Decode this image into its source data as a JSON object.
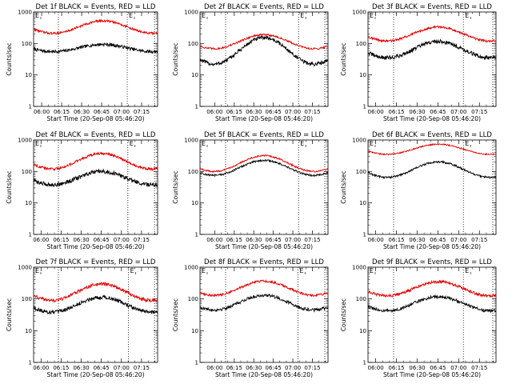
{
  "chart_data": [
    {
      "type": "line",
      "title": "Det 1f BLACK = Events, RED = LLD",
      "xlabel": "Start Time (20-Sep-08 05:46:20)",
      "ylabel": "Counts/sec",
      "yscale": "log",
      "ylim": [
        1,
        1000
      ],
      "yticks": [
        "1",
        "10",
        "100",
        "1000"
      ],
      "xticks": [
        "06:00",
        "06:15",
        "06:30",
        "06:45",
        "07:00",
        "07:15"
      ],
      "xtick_offset": 0.065,
      "markers": [
        "E",
        "E"
      ],
      "marker_pos": [
        0.0,
        0.755
      ],
      "vlines": [
        0.2,
        0.755,
        0.975
      ],
      "series": [
        {
          "color": "#000000",
          "base": 55,
          "amp": 1.7,
          "period": 0.8,
          "phase": 0.56,
          "noise": 0.1
        },
        {
          "color": "#e00000",
          "base": 210,
          "amp": 2.5,
          "period": 0.8,
          "phase": 0.56,
          "noise": 0.07
        }
      ]
    },
    {
      "type": "line",
      "title": "Det 2f BLACK = Events, RED = LLD",
      "xlabel": "Start Time (20-Sep-08 05:46:20)",
      "ylabel": "Counts/sec",
      "yscale": "log",
      "ylim": [
        1,
        1000
      ],
      "yticks": [
        "1",
        "10",
        "100",
        "1000"
      ],
      "xticks": [
        "06:00",
        "06:15",
        "06:30",
        "06:45",
        "07:00",
        "07:15"
      ],
      "xtick_offset": 0.115,
      "markers": [
        "E",
        "E"
      ],
      "marker_pos": [
        0.0,
        0.77
      ],
      "vlines": [
        0.2,
        0.77,
        0.975
      ],
      "series": [
        {
          "color": "#000000",
          "base": 22,
          "amp": 7,
          "period": 0.78,
          "phase": 0.5,
          "noise": 0.12
        },
        {
          "color": "#e00000",
          "base": 68,
          "amp": 2.8,
          "period": 0.78,
          "phase": 0.5,
          "noise": 0.06
        }
      ]
    },
    {
      "type": "line",
      "title": "Det 3f BLACK = Events, RED = LLD",
      "xlabel": "Start Time (20-Sep-08 05:46:20)",
      "ylabel": "Counts/sec",
      "yscale": "log",
      "ylim": [
        1,
        1000
      ],
      "yticks": [
        "1",
        "10",
        "100",
        "1000"
      ],
      "xticks": [
        "06:00",
        "06:15",
        "06:30",
        "06:45",
        "07:00",
        "07:15"
      ],
      "xtick_offset": 0.06,
      "markers": [
        "E",
        "E"
      ],
      "marker_pos": [
        0.0,
        0.745
      ],
      "vlines": [
        0.2,
        0.745,
        0.975
      ],
      "series": [
        {
          "color": "#000000",
          "base": 35,
          "amp": 3.3,
          "period": 0.8,
          "phase": 0.55,
          "noise": 0.13
        },
        {
          "color": "#e00000",
          "base": 120,
          "amp": 2.8,
          "period": 0.8,
          "phase": 0.55,
          "noise": 0.07
        }
      ]
    },
    {
      "type": "line",
      "title": "Det 4f BLACK = Events, RED = LLD",
      "xlabel": "Start Time (20-Sep-08 05:46:20)",
      "ylabel": "Counts/sec",
      "yscale": "log",
      "ylim": [
        1,
        1000
      ],
      "yticks": [
        "1",
        "10",
        "100",
        "1000"
      ],
      "xticks": [
        "06:00",
        "06:15",
        "06:30",
        "06:45",
        "07:00",
        "07:15"
      ],
      "xtick_offset": 0.06,
      "markers": [
        "E",
        "E"
      ],
      "marker_pos": [
        0.0,
        0.76
      ],
      "vlines": [
        0.2,
        0.76,
        0.975
      ],
      "series": [
        {
          "color": "#000000",
          "base": 38,
          "amp": 2.6,
          "period": 0.8,
          "phase": 0.55,
          "noise": 0.13
        },
        {
          "color": "#e00000",
          "base": 120,
          "amp": 3.1,
          "period": 0.8,
          "phase": 0.55,
          "noise": 0.08
        }
      ]
    },
    {
      "type": "line",
      "title": "Det 5f BLACK = Events, RED = LLD",
      "xlabel": "Start Time (20-Sep-08 05:46:20)",
      "ylabel": "Counts/sec",
      "yscale": "log",
      "ylim": [
        1,
        1000
      ],
      "yticks": [
        "1",
        "10",
        "100",
        "1000"
      ],
      "xticks": [
        "06:00",
        "06:15",
        "06:30",
        "06:45",
        "07:00",
        "07:15"
      ],
      "xtick_offset": 0.115,
      "markers": [
        "E",
        "E"
      ],
      "marker_pos": [
        0.0,
        0.77
      ],
      "vlines": [
        0.2,
        0.77,
        0.975
      ],
      "series": [
        {
          "color": "#000000",
          "base": 75,
          "amp": 3.0,
          "period": 0.78,
          "phase": 0.5,
          "noise": 0.06
        },
        {
          "color": "#e00000",
          "base": 100,
          "amp": 3.2,
          "period": 0.78,
          "phase": 0.5,
          "noise": 0.05
        }
      ]
    },
    {
      "type": "line",
      "title": "Det 6f BLACK = Events, RED = LLD",
      "xlabel": "Start Time (20-Sep-08 05:46:20)",
      "ylabel": "Counts/sec",
      "yscale": "log",
      "ylim": [
        1,
        1000
      ],
      "yticks": [
        "1",
        "10",
        "100",
        "1000"
      ],
      "xticks": [
        "06:00",
        "06:15",
        "06:30",
        "06:45",
        "07:00",
        "07:15"
      ],
      "xtick_offset": 0.06,
      "markers": [
        "E",
        "E"
      ],
      "marker_pos": [
        0.0,
        0.745
      ],
      "vlines": [
        0.2,
        0.745,
        0.975
      ],
      "series": [
        {
          "color": "#000000",
          "base": 65,
          "amp": 3.1,
          "period": 0.8,
          "phase": 0.55,
          "noise": 0.06
        },
        {
          "color": "#e00000",
          "base": 350,
          "amp": 2.1,
          "period": 0.8,
          "phase": 0.55,
          "noise": 0.04
        }
      ]
    },
    {
      "type": "line",
      "title": "Det 7f BLACK = Events, RED = LLD",
      "xlabel": "Start Time (20-Sep-08 05:46:20)",
      "ylabel": "Counts/sec",
      "yscale": "log",
      "ylim": [
        1,
        1000
      ],
      "yticks": [
        "1",
        "10",
        "100",
        "1000"
      ],
      "xticks": [
        "06:00",
        "06:15",
        "06:30",
        "06:45",
        "07:00",
        "07:15"
      ],
      "xtick_offset": 0.06,
      "markers": [
        "E",
        "E"
      ],
      "marker_pos": [
        0.0,
        0.765
      ],
      "vlines": [
        0.2,
        0.765,
        0.975
      ],
      "series": [
        {
          "color": "#000000",
          "base": 38,
          "amp": 3.0,
          "period": 0.8,
          "phase": 0.55,
          "noise": 0.12
        },
        {
          "color": "#e00000",
          "base": 90,
          "amp": 3.3,
          "period": 0.8,
          "phase": 0.55,
          "noise": 0.1
        }
      ]
    },
    {
      "type": "line",
      "title": "Det 8f BLACK = Events, RED = LLD",
      "xlabel": "Start Time (20-Sep-08 05:46:20)",
      "ylabel": "Counts/sec",
      "yscale": "log",
      "ylim": [
        1,
        1000
      ],
      "yticks": [
        "1",
        "10",
        "100",
        "1000"
      ],
      "xticks": [
        "06:00",
        "06:15",
        "06:30",
        "06:45",
        "07:00",
        "07:15"
      ],
      "xtick_offset": 0.115,
      "markers": [
        "E",
        "E"
      ],
      "marker_pos": [
        0.0,
        0.765
      ],
      "vlines": [
        0.2,
        0.765,
        0.975
      ],
      "series": [
        {
          "color": "#000000",
          "base": 45,
          "amp": 2.9,
          "period": 0.78,
          "phase": 0.5,
          "noise": 0.1
        },
        {
          "color": "#e00000",
          "base": 130,
          "amp": 2.8,
          "period": 0.78,
          "phase": 0.5,
          "noise": 0.07
        }
      ]
    },
    {
      "type": "line",
      "title": "Det 9f BLACK = Events, RED = LLD",
      "xlabel": "Start Time (20-Sep-08 05:46:20)",
      "ylabel": "Counts/sec",
      "yscale": "log",
      "ylim": [
        1,
        1000
      ],
      "yticks": [
        "1",
        "10",
        "100",
        "1000"
      ],
      "xticks": [
        "06:00",
        "06:15",
        "06:30",
        "06:45",
        "07:00",
        "07:15"
      ],
      "xtick_offset": 0.06,
      "markers": [
        "E",
        "E"
      ],
      "marker_pos": [
        0.0,
        0.745
      ],
      "vlines": [
        0.2,
        0.745,
        0.975
      ],
      "series": [
        {
          "color": "#000000",
          "base": 42,
          "amp": 2.8,
          "period": 0.8,
          "phase": 0.55,
          "noise": 0.1
        },
        {
          "color": "#e00000",
          "base": 125,
          "amp": 2.8,
          "period": 0.8,
          "phase": 0.55,
          "noise": 0.09
        }
      ]
    }
  ]
}
